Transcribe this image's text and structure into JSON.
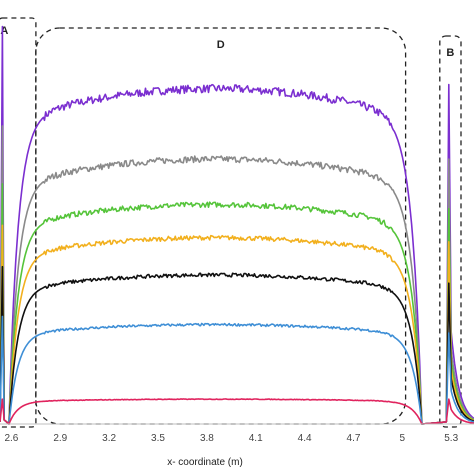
{
  "chart_data": {
    "type": "line",
    "title": "",
    "xlabel": "x- coordinate (m)",
    "ylabel": "",
    "xlim": [
      2.53,
      5.44
    ],
    "ylim": [
      0,
      1
    ],
    "x_ticks": [
      "2.6",
      "2.9",
      "3.2",
      "3.5",
      "3.8",
      "4.1",
      "4.4",
      "4.7",
      "5",
      "5.3"
    ],
    "grid": "none",
    "legend": "none",
    "regions": [
      {
        "label": "A",
        "x_range": [
          2.52,
          2.75
        ]
      },
      {
        "label": "D",
        "x_range": [
          2.75,
          5.02
        ]
      },
      {
        "label": "B",
        "x_range": [
          5.23,
          5.36
        ]
      }
    ],
    "series": [
      {
        "color": "#7b2fd0",
        "plateau": 0.81,
        "left_peak": 0.96,
        "right_peak": 0.82
      },
      {
        "color": "#8a8a8a",
        "plateau": 0.64,
        "left_peak": 0.72,
        "right_peak": 0.64
      },
      {
        "color": "#55c43a",
        "plateau": 0.53,
        "left_peak": 0.58,
        "right_peak": 0.52
      },
      {
        "color": "#f2b01e",
        "plateau": 0.45,
        "left_peak": 0.48,
        "right_peak": 0.44
      },
      {
        "color": "#111111",
        "plateau": 0.36,
        "left_peak": 0.38,
        "right_peak": 0.34
      },
      {
        "color": "#3f8fd6",
        "plateau": 0.24,
        "left_peak": 0.26,
        "right_peak": 0.22
      },
      {
        "color": "#e0245e",
        "plateau": 0.06,
        "left_peak": 0.06,
        "right_peak": 0.06
      }
    ]
  }
}
